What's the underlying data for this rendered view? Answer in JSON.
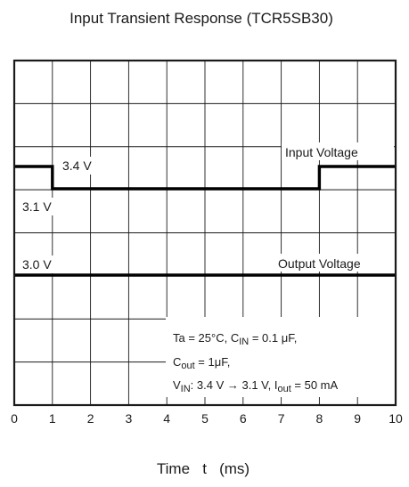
{
  "chart_data": {
    "type": "line",
    "title": "Input Transient Response (TCR5SB30)",
    "xlabel": "Time   t   (ms)",
    "ylabel": "",
    "xlim": [
      0,
      10
    ],
    "x_ticks": [
      "0",
      "1",
      "2",
      "3",
      "4",
      "5",
      "6",
      "7",
      "8",
      "9",
      "10"
    ],
    "grid": true,
    "series": [
      {
        "name": "Input Voltage",
        "x": [
          0,
          1,
          1,
          8,
          8,
          10
        ],
        "y": [
          3.4,
          3.4,
          3.1,
          3.1,
          3.4,
          3.4
        ]
      },
      {
        "name": "Output Voltage",
        "x": [
          0,
          10
        ],
        "y": [
          3.0,
          3.0
        ]
      }
    ],
    "level_labels": [
      "3.4 V",
      "3.1 V",
      "3.0 V"
    ],
    "conditions": {
      "line1": {
        "a": "Ta = 25°C, C",
        "b": "IN",
        "c": " = 0.1 μF,"
      },
      "line2": {
        "a": "C",
        "b": "out",
        "c": " = 1μF,"
      },
      "line3": {
        "a": "V",
        "b": "IN",
        "c": ": 3.4 V → 3.1 V, I",
        "d": "out",
        "e": " = 50 mA"
      }
    }
  }
}
